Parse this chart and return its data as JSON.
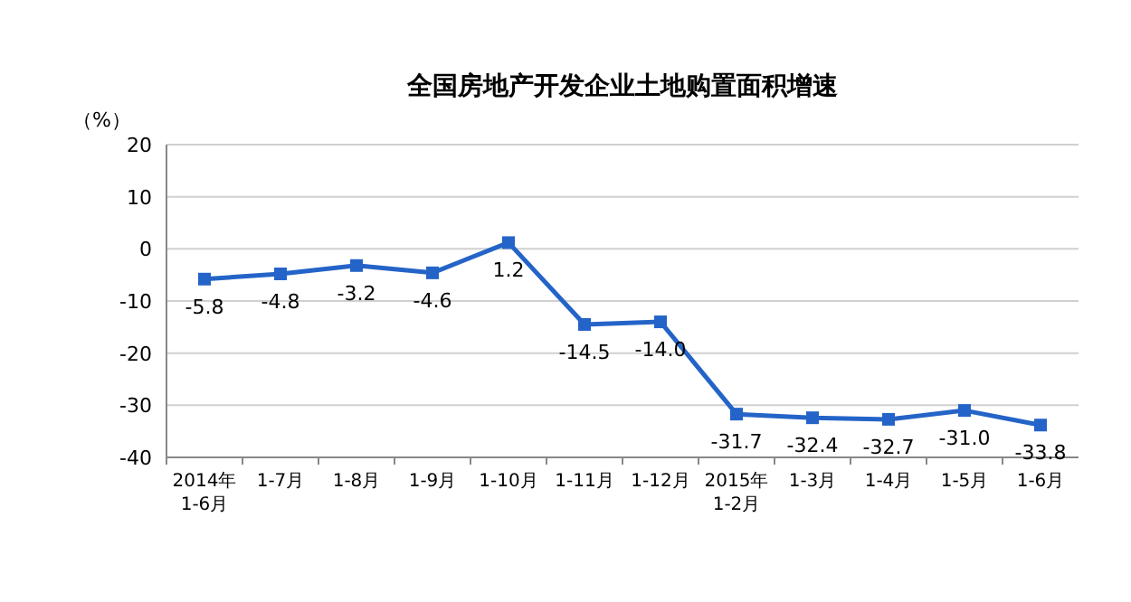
{
  "chart_data": {
    "type": "line",
    "title": "全国房地产开发企业土地购置面积增速",
    "ylabel": "（%）",
    "categories": [
      "2014年\n1-6月",
      "1-7月",
      "1-8月",
      "1-9月",
      "1-10月",
      "1-11月",
      "1-12月",
      "2015年\n1-2月",
      "1-3月",
      "1-4月",
      "1-5月",
      "1-6月"
    ],
    "series": [
      {
        "color": "#2464c8",
        "values": [
          -5.8,
          -4.8,
          -3.2,
          -4.6,
          1.2,
          -14.5,
          -14.0,
          -31.7,
          -32.4,
          -32.7,
          -31.0,
          -33.8
        ],
        "value_labels": [
          "-5.8",
          "-4.8",
          "-3.2",
          "-4.6",
          "1.2",
          "-14.5",
          "-14.0",
          "-31.7",
          "-32.4",
          "-32.7",
          "-31.0",
          "-33.8"
        ]
      }
    ],
    "ylim": [
      -40,
      20
    ],
    "yticks": [
      -40,
      -30,
      -20,
      -10,
      0,
      10,
      20
    ],
    "grid": "y",
    "marker": "square",
    "line_style": "solid"
  }
}
